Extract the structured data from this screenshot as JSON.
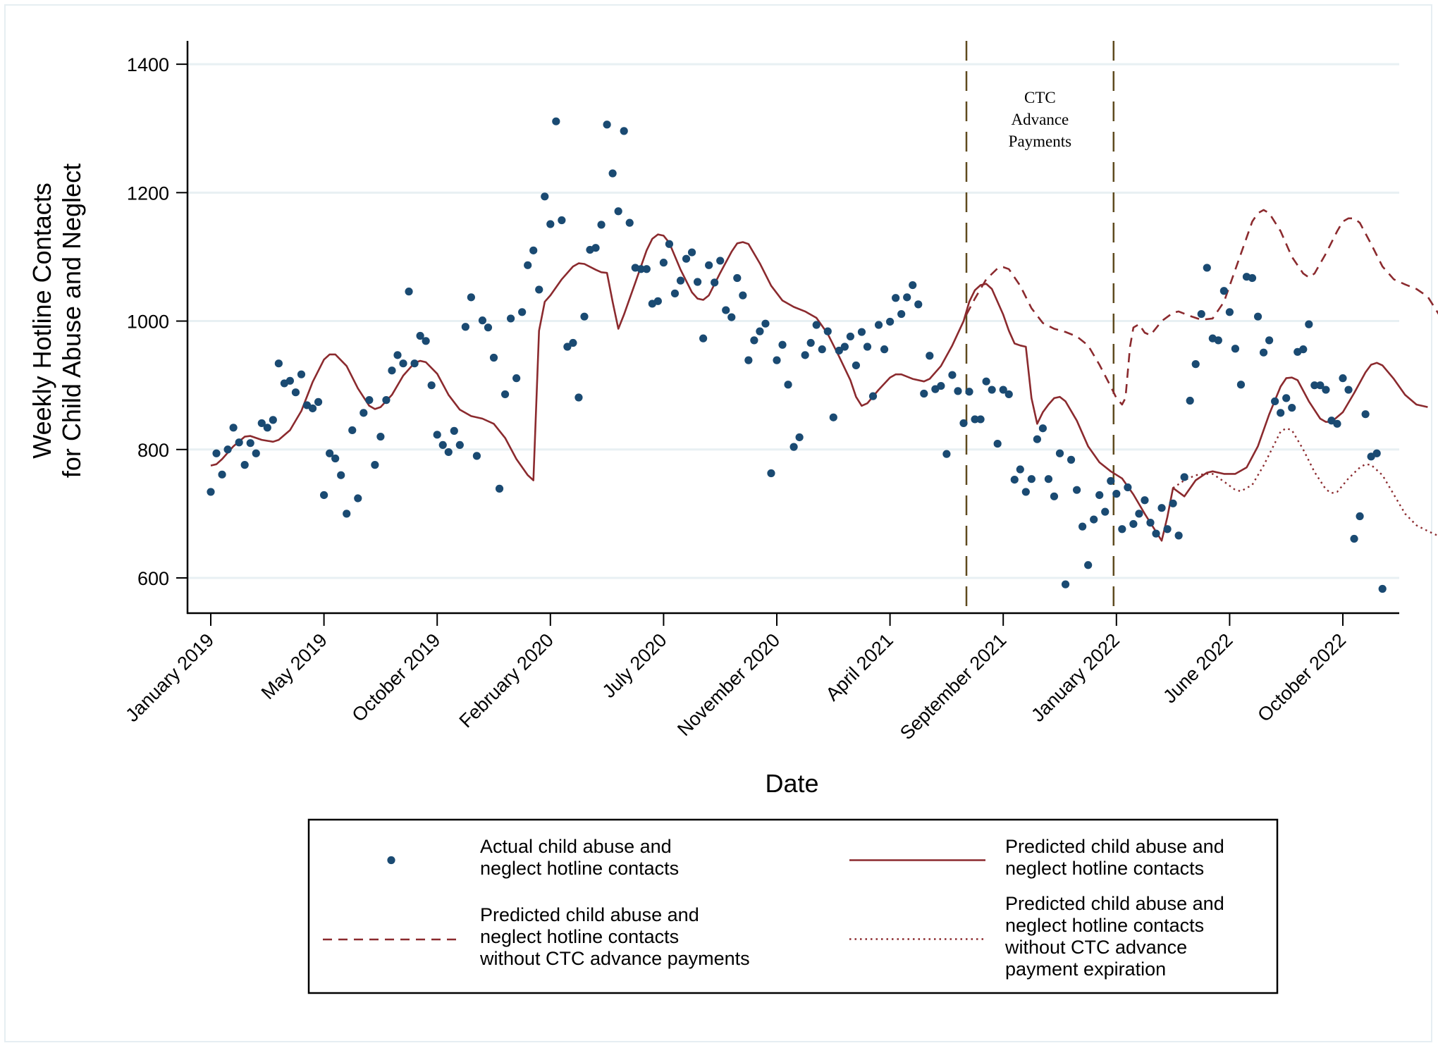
{
  "chart_data": {
    "type": "scatter",
    "title": "",
    "xlabel": "Date",
    "ylabel": [
      "Weekly Hotline Contacts",
      "for Child Abuse and Neglect"
    ],
    "ylim": [
      545,
      1435
    ],
    "yticks": [
      600,
      800,
      1000,
      1200,
      1400
    ],
    "grid": true,
    "x_unit": "weeks since January 2019",
    "xlim": [
      -4,
      217
    ],
    "xticks": [
      {
        "week": 0,
        "label": "January 2019"
      },
      {
        "week": 20,
        "label": "May 2019"
      },
      {
        "week": 40,
        "label": "October 2019"
      },
      {
        "week": 60,
        "label": "February 2020"
      },
      {
        "week": 80,
        "label": "July 2020"
      },
      {
        "week": 100,
        "label": "November 2020"
      },
      {
        "week": 120,
        "label": "April 2021"
      },
      {
        "week": 140,
        "label": "September 2021"
      },
      {
        "week": 160,
        "label": "January 2022"
      },
      {
        "week": 180,
        "label": "June 2022"
      },
      {
        "week": 200,
        "label": "October 2022"
      }
    ],
    "vlines": [
      {
        "week": 133.5
      },
      {
        "week": 159.5
      }
    ],
    "annotation": {
      "lines": [
        "CTC",
        "Advance",
        "Payments"
      ],
      "week": 146.5,
      "value": 1340
    },
    "series": [
      {
        "name": "Actual child abuse and neglect hotline contacts",
        "kind": "points",
        "color": "#1a4a72",
        "start_week": 0,
        "values": [
          734,
          794,
          761,
          800,
          834,
          811,
          776,
          810,
          794,
          841,
          834,
          846,
          934,
          903,
          907,
          889,
          917,
          869,
          864,
          874,
          729,
          794,
          786,
          760,
          700,
          830,
          724,
          857,
          877,
          776,
          820,
          877,
          923,
          947,
          934,
          1046,
          934,
          977,
          969,
          900,
          823,
          807,
          796,
          829,
          807,
          991,
          1037,
          790,
          1001,
          990,
          943,
          739,
          886,
          1004,
          911,
          1014,
          1087,
          1110,
          1049,
          1194,
          1151,
          1311,
          1157,
          960,
          966,
          881,
          1007,
          1111,
          1114,
          1150,
          1306,
          1230,
          1171,
          1296,
          1153,
          1083,
          1081,
          1081,
          1027,
          1031,
          1091,
          1120,
          1043,
          1063,
          1097,
          1107,
          1061,
          973,
          1087,
          1060,
          1094,
          1017,
          1006,
          1067,
          1040,
          939,
          970,
          984,
          996,
          763,
          939,
          963,
          901,
          804,
          819,
          947,
          966,
          994,
          956,
          984,
          850,
          954,
          960,
          976,
          931,
          983,
          960,
          883,
          994,
          956,
          999,
          1036,
          1011,
          1037,
          1056,
          1026,
          887,
          946,
          894,
          899,
          793,
          916,
          891,
          841,
          890,
          847,
          847,
          906,
          893,
          809,
          893,
          886,
          753,
          769,
          734,
          754,
          816,
          833,
          754,
          727,
          794,
          590,
          784,
          737,
          680,
          620,
          691,
          729,
          703,
          751,
          731,
          676,
          741,
          684,
          700,
          721,
          686,
          669,
          709,
          676,
          716,
          666,
          757,
          876,
          933,
          1011,
          1083,
          973,
          970,
          1047,
          1014,
          957,
          901,
          1069,
          1067,
          1007,
          951,
          970,
          875,
          857,
          880,
          865,
          952,
          956,
          995,
          900,
          900,
          893,
          845,
          840,
          911,
          893,
          661,
          696,
          855,
          789,
          794,
          583
        ]
      },
      {
        "name": "Predicted child abuse and neglect hotline contacts",
        "kind": "solid",
        "color": "#8b2a2e",
        "points": [
          [
            0,
            775
          ],
          [
            1,
            777
          ],
          [
            2,
            785
          ],
          [
            4,
            805
          ],
          [
            6,
            820
          ],
          [
            7,
            821
          ],
          [
            9,
            815
          ],
          [
            11,
            812
          ],
          [
            12,
            815
          ],
          [
            14,
            830
          ],
          [
            16,
            860
          ],
          [
            18,
            905
          ],
          [
            20,
            940
          ],
          [
            21,
            948
          ],
          [
            22,
            948
          ],
          [
            24,
            930
          ],
          [
            26,
            895
          ],
          [
            28,
            868
          ],
          [
            29,
            863
          ],
          [
            30,
            866
          ],
          [
            32,
            885
          ],
          [
            34,
            915
          ],
          [
            36,
            935
          ],
          [
            37,
            938
          ],
          [
            38,
            936
          ],
          [
            40,
            918
          ],
          [
            42,
            885
          ],
          [
            44,
            862
          ],
          [
            46,
            852
          ],
          [
            48,
            848
          ],
          [
            50,
            840
          ],
          [
            52,
            818
          ],
          [
            54,
            785
          ],
          [
            56,
            760
          ],
          [
            57,
            752
          ],
          [
            58,
            985
          ],
          [
            59,
            1030
          ],
          [
            60,
            1040
          ],
          [
            62,
            1065
          ],
          [
            64,
            1085
          ],
          [
            65,
            1090
          ],
          [
            66,
            1089
          ],
          [
            68,
            1080
          ],
          [
            69,
            1076
          ],
          [
            70,
            1075
          ],
          [
            71,
            1030
          ],
          [
            72,
            988
          ],
          [
            73,
            1010
          ],
          [
            75,
            1060
          ],
          [
            77,
            1110
          ],
          [
            78,
            1128
          ],
          [
            79,
            1135
          ],
          [
            80,
            1133
          ],
          [
            81,
            1122
          ],
          [
            83,
            1080
          ],
          [
            85,
            1045
          ],
          [
            86,
            1035
          ],
          [
            87,
            1033
          ],
          [
            88,
            1040
          ],
          [
            90,
            1075
          ],
          [
            92,
            1108
          ],
          [
            93,
            1121
          ],
          [
            94,
            1123
          ],
          [
            95,
            1120
          ],
          [
            97,
            1090
          ],
          [
            99,
            1055
          ],
          [
            101,
            1032
          ],
          [
            103,
            1022
          ],
          [
            105,
            1015
          ],
          [
            107,
            1005
          ],
          [
            109,
            980
          ],
          [
            111,
            945
          ],
          [
            113,
            908
          ],
          [
            114,
            882
          ],
          [
            115,
            868
          ],
          [
            116,
            872
          ],
          [
            118,
            893
          ],
          [
            120,
            912
          ],
          [
            121,
            917
          ],
          [
            122,
            917
          ],
          [
            124,
            910
          ],
          [
            126,
            906
          ],
          [
            127,
            910
          ],
          [
            129,
            930
          ],
          [
            131,
            962
          ],
          [
            133,
            1000
          ],
          [
            134,
            1030
          ],
          [
            135,
            1048
          ],
          [
            136,
            1056
          ],
          [
            137,
            1058
          ],
          [
            138,
            1050
          ],
          [
            140,
            1010
          ],
          [
            141,
            985
          ],
          [
            142,
            965
          ],
          [
            143,
            962
          ],
          [
            144,
            960
          ],
          [
            145,
            880
          ],
          [
            146,
            840
          ],
          [
            147,
            858
          ],
          [
            148,
            870
          ],
          [
            149,
            880
          ],
          [
            150,
            882
          ],
          [
            151,
            875
          ],
          [
            153,
            845
          ],
          [
            155,
            805
          ],
          [
            157,
            780
          ],
          [
            159,
            766
          ],
          [
            161,
            755
          ],
          [
            163,
            730
          ],
          [
            165,
            700
          ],
          [
            167,
            672
          ],
          [
            168,
            658
          ],
          [
            169,
            695
          ],
          [
            170,
            740
          ],
          [
            172,
            727
          ],
          [
            174,
            752
          ],
          [
            176,
            764
          ],
          [
            177,
            766
          ],
          [
            179,
            762
          ],
          [
            181,
            762
          ],
          [
            183,
            772
          ],
          [
            185,
            805
          ],
          [
            187,
            855
          ],
          [
            189,
            898
          ],
          [
            190,
            911
          ],
          [
            191,
            912
          ],
          [
            192,
            908
          ],
          [
            194,
            875
          ],
          [
            196,
            848
          ],
          [
            197,
            843
          ],
          [
            198,
            843
          ],
          [
            200,
            858
          ],
          [
            202,
            888
          ],
          [
            204,
            920
          ],
          [
            205,
            932
          ],
          [
            206,
            935
          ],
          [
            207,
            931
          ],
          [
            209,
            910
          ],
          [
            211,
            885
          ],
          [
            213,
            870
          ],
          [
            215,
            866
          ]
        ]
      },
      {
        "name": "Predicted child abuse and neglect hotline contacts without CTC advance payments",
        "kind": "dashed",
        "color": "#8b2a2e",
        "points": [
          [
            133.5,
            1010
          ],
          [
            135,
            1035
          ],
          [
            137,
            1065
          ],
          [
            139,
            1082
          ],
          [
            140,
            1084
          ],
          [
            141,
            1081
          ],
          [
            143,
            1055
          ],
          [
            145,
            1020
          ],
          [
            147,
            997
          ],
          [
            149,
            988
          ],
          [
            151,
            983
          ],
          [
            153,
            976
          ],
          [
            155,
            962
          ],
          [
            157,
            932
          ],
          [
            159,
            898
          ],
          [
            160,
            880
          ],
          [
            161,
            870
          ],
          [
            161.6,
            880
          ],
          [
            162.4,
            960
          ],
          [
            163,
            990
          ],
          [
            164,
            995
          ],
          [
            165,
            982
          ],
          [
            166,
            978
          ],
          [
            168,
            1000
          ],
          [
            170,
            1013
          ],
          [
            171,
            1015
          ],
          [
            173,
            1008
          ],
          [
            175,
            1002
          ],
          [
            177,
            1004
          ],
          [
            179,
            1030
          ],
          [
            181,
            1080
          ],
          [
            183,
            1130
          ],
          [
            184,
            1155
          ],
          [
            185,
            1168
          ],
          [
            186,
            1173
          ],
          [
            187,
            1168
          ],
          [
            189,
            1140
          ],
          [
            191,
            1100
          ],
          [
            193,
            1074
          ],
          [
            194,
            1068
          ],
          [
            195,
            1074
          ],
          [
            197,
            1105
          ],
          [
            199,
            1140
          ],
          [
            200,
            1155
          ],
          [
            201,
            1160
          ],
          [
            202,
            1160
          ],
          [
            203,
            1153
          ],
          [
            205,
            1120
          ],
          [
            207,
            1085
          ],
          [
            209,
            1065
          ],
          [
            211,
            1057
          ],
          [
            213,
            1050
          ],
          [
            215,
            1038
          ],
          [
            217,
            1010
          ],
          [
            219,
            972
          ],
          [
            220,
            945
          ]
        ]
      },
      {
        "name": "Predicted child abuse and neglect hotline contacts without CTC advance payment expiration",
        "kind": "dotted",
        "color": "#8b2a2e",
        "points": [
          [
            170,
            740
          ],
          [
            172,
            752
          ],
          [
            174,
            760
          ],
          [
            176,
            762
          ],
          [
            177,
            762
          ],
          [
            179,
            750
          ],
          [
            181,
            737
          ],
          [
            182,
            735
          ],
          [
            184,
            745
          ],
          [
            186,
            775
          ],
          [
            188,
            810
          ],
          [
            189,
            828
          ],
          [
            190,
            833
          ],
          [
            191,
            830
          ],
          [
            193,
            800
          ],
          [
            195,
            765
          ],
          [
            197,
            738
          ],
          [
            198,
            732
          ],
          [
            199,
            734
          ],
          [
            201,
            755
          ],
          [
            203,
            772
          ],
          [
            204,
            777
          ],
          [
            205,
            776
          ],
          [
            207,
            760
          ],
          [
            209,
            730
          ],
          [
            211,
            700
          ],
          [
            213,
            682
          ],
          [
            215,
            673
          ],
          [
            217,
            665
          ],
          [
            219,
            650
          ],
          [
            221,
            620
          ],
          [
            223,
            584
          ]
        ]
      }
    ],
    "legend": {
      "placement": "bottom",
      "entries": [
        {
          "kind": "points",
          "lines": [
            "Actual child abuse and",
            "neglect hotline contacts"
          ]
        },
        {
          "kind": "solid",
          "lines": [
            "Predicted child abuse and",
            "neglect hotline contacts"
          ]
        },
        {
          "kind": "dashed",
          "lines": [
            "Predicted child abuse and",
            "neglect hotline contacts",
            "without CTC advance payments"
          ]
        },
        {
          "kind": "dotted",
          "lines": [
            "Predicted child abuse and",
            "neglect hotline contacts",
            "without CTC advance",
            "payment expiration"
          ]
        }
      ]
    }
  }
}
